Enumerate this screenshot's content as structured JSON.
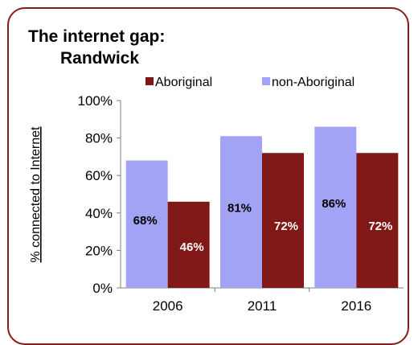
{
  "chart_data": {
    "type": "bar",
    "title": "The internet gap:",
    "subtitle": "Randwick",
    "categories": [
      "2006",
      "2011",
      "2016"
    ],
    "series": [
      {
        "name": "non-Aboriginal",
        "values": [
          68,
          81,
          86
        ],
        "labels": [
          "68%",
          "81%",
          "86%"
        ]
      },
      {
        "name": "Aboriginal",
        "values": [
          46,
          72,
          72
        ],
        "labels": [
          "46%",
          "72%",
          "72%"
        ]
      }
    ],
    "legend": [
      "Aboriginal",
      "non-Aboriginal"
    ],
    "ylabel": "% connected to Internet",
    "yticks": [
      "0%",
      "20%",
      "40%",
      "60%",
      "80%",
      "100%"
    ],
    "ylim": [
      0,
      100
    ],
    "legend_position": "top",
    "grid": false
  },
  "colors": {
    "non_aboriginal": "#a3a3f5",
    "aboriginal": "#801818",
    "frame": "#8b1a1a"
  }
}
